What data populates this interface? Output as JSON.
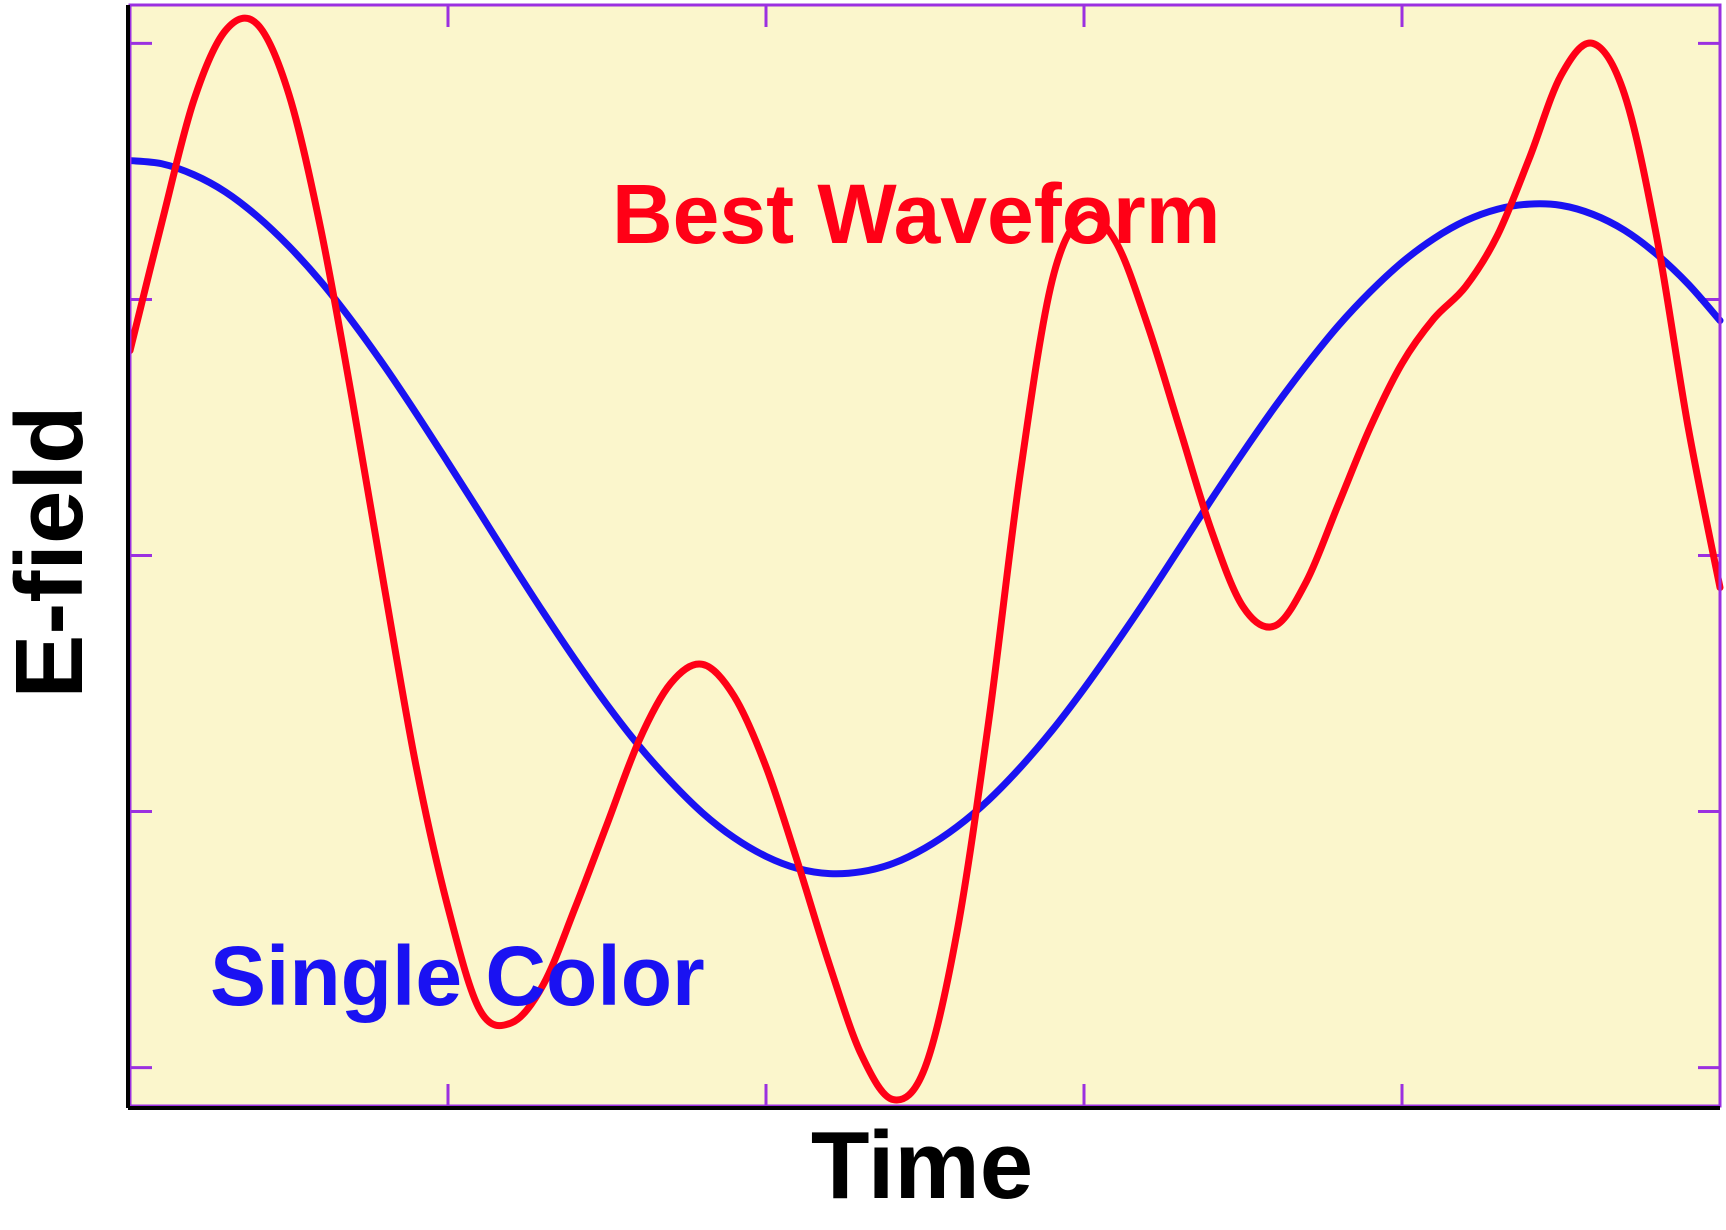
{
  "chart_data": {
    "type": "line",
    "xlabel": "Time",
    "ylabel": "E-field",
    "xlim": [
      0,
      5
    ],
    "ylim": [
      -0.86,
      0.86
    ],
    "x_ticks": [
      0,
      1,
      2,
      3,
      4,
      5
    ],
    "y_ticks": [
      -0.8,
      -0.4,
      0,
      0.4,
      0.8
    ],
    "grid": false,
    "background_color": "#fbf6cc",
    "tick_color": "#9b30e0",
    "series": [
      {
        "name": "Best Waveform",
        "color": "#ff0016",
        "x": [
          0,
          0.1,
          0.2,
          0.3,
          0.4,
          0.5,
          0.6,
          0.7,
          0.8,
          0.9,
          1.0,
          1.1,
          1.2,
          1.3,
          1.4,
          1.5,
          1.6,
          1.7,
          1.8,
          1.9,
          2.0,
          2.1,
          2.2,
          2.3,
          2.4,
          2.5,
          2.6,
          2.7,
          2.8,
          2.9,
          3.0,
          3.1,
          3.2,
          3.3,
          3.4,
          3.5,
          3.6,
          3.7,
          3.8,
          3.9,
          4.0,
          4.1,
          4.2,
          4.3,
          4.4,
          4.5,
          4.6,
          4.7,
          4.8,
          4.9,
          5.0
        ],
        "y": [
          0.32,
          0.52,
          0.71,
          0.82,
          0.83,
          0.72,
          0.51,
          0.24,
          -0.05,
          -0.33,
          -0.55,
          -0.71,
          -0.73,
          -0.67,
          -0.55,
          -0.42,
          -0.29,
          -0.2,
          -0.17,
          -0.22,
          -0.33,
          -0.48,
          -0.64,
          -0.78,
          -0.85,
          -0.8,
          -0.59,
          -0.26,
          0.13,
          0.43,
          0.53,
          0.49,
          0.36,
          0.2,
          0.04,
          -0.08,
          -0.11,
          -0.04,
          0.08,
          0.2,
          0.3,
          0.37,
          0.42,
          0.5,
          0.62,
          0.75,
          0.8,
          0.72,
          0.5,
          0.2,
          -0.05
        ]
      },
      {
        "name": "Single Color",
        "color": "#1a12f2",
        "x": [
          0,
          0.1,
          0.2,
          0.3,
          0.4,
          0.5,
          0.6,
          0.7,
          0.8,
          0.9,
          1.0,
          1.1,
          1.2,
          1.3,
          1.4,
          1.5,
          1.6,
          1.7,
          1.8,
          1.9,
          2.0,
          2.1,
          2.2,
          2.3,
          2.4,
          2.5,
          2.6,
          2.7,
          2.8,
          2.9,
          3.0,
          3.1,
          3.2,
          3.3,
          3.4,
          3.5,
          3.6,
          3.7,
          3.8,
          3.9,
          4.0,
          4.1,
          4.2,
          4.3,
          4.4,
          4.5,
          4.6,
          4.7,
          4.8,
          4.9,
          5.0
        ],
        "y": [
          0.617,
          0.612,
          0.595,
          0.568,
          0.53,
          0.483,
          0.428,
          0.365,
          0.296,
          0.222,
          0.145,
          0.067,
          -0.012,
          -0.089,
          -0.163,
          -0.233,
          -0.297,
          -0.353,
          -0.402,
          -0.441,
          -0.47,
          -0.489,
          -0.497,
          -0.494,
          -0.481,
          -0.457,
          -0.424,
          -0.382,
          -0.331,
          -0.273,
          -0.208,
          -0.138,
          -0.065,
          0.011,
          0.087,
          0.161,
          0.232,
          0.298,
          0.359,
          0.412,
          0.458,
          0.495,
          0.523,
          0.541,
          0.549,
          0.547,
          0.533,
          0.508,
          0.471,
          0.424,
          0.367
        ]
      }
    ]
  }
}
